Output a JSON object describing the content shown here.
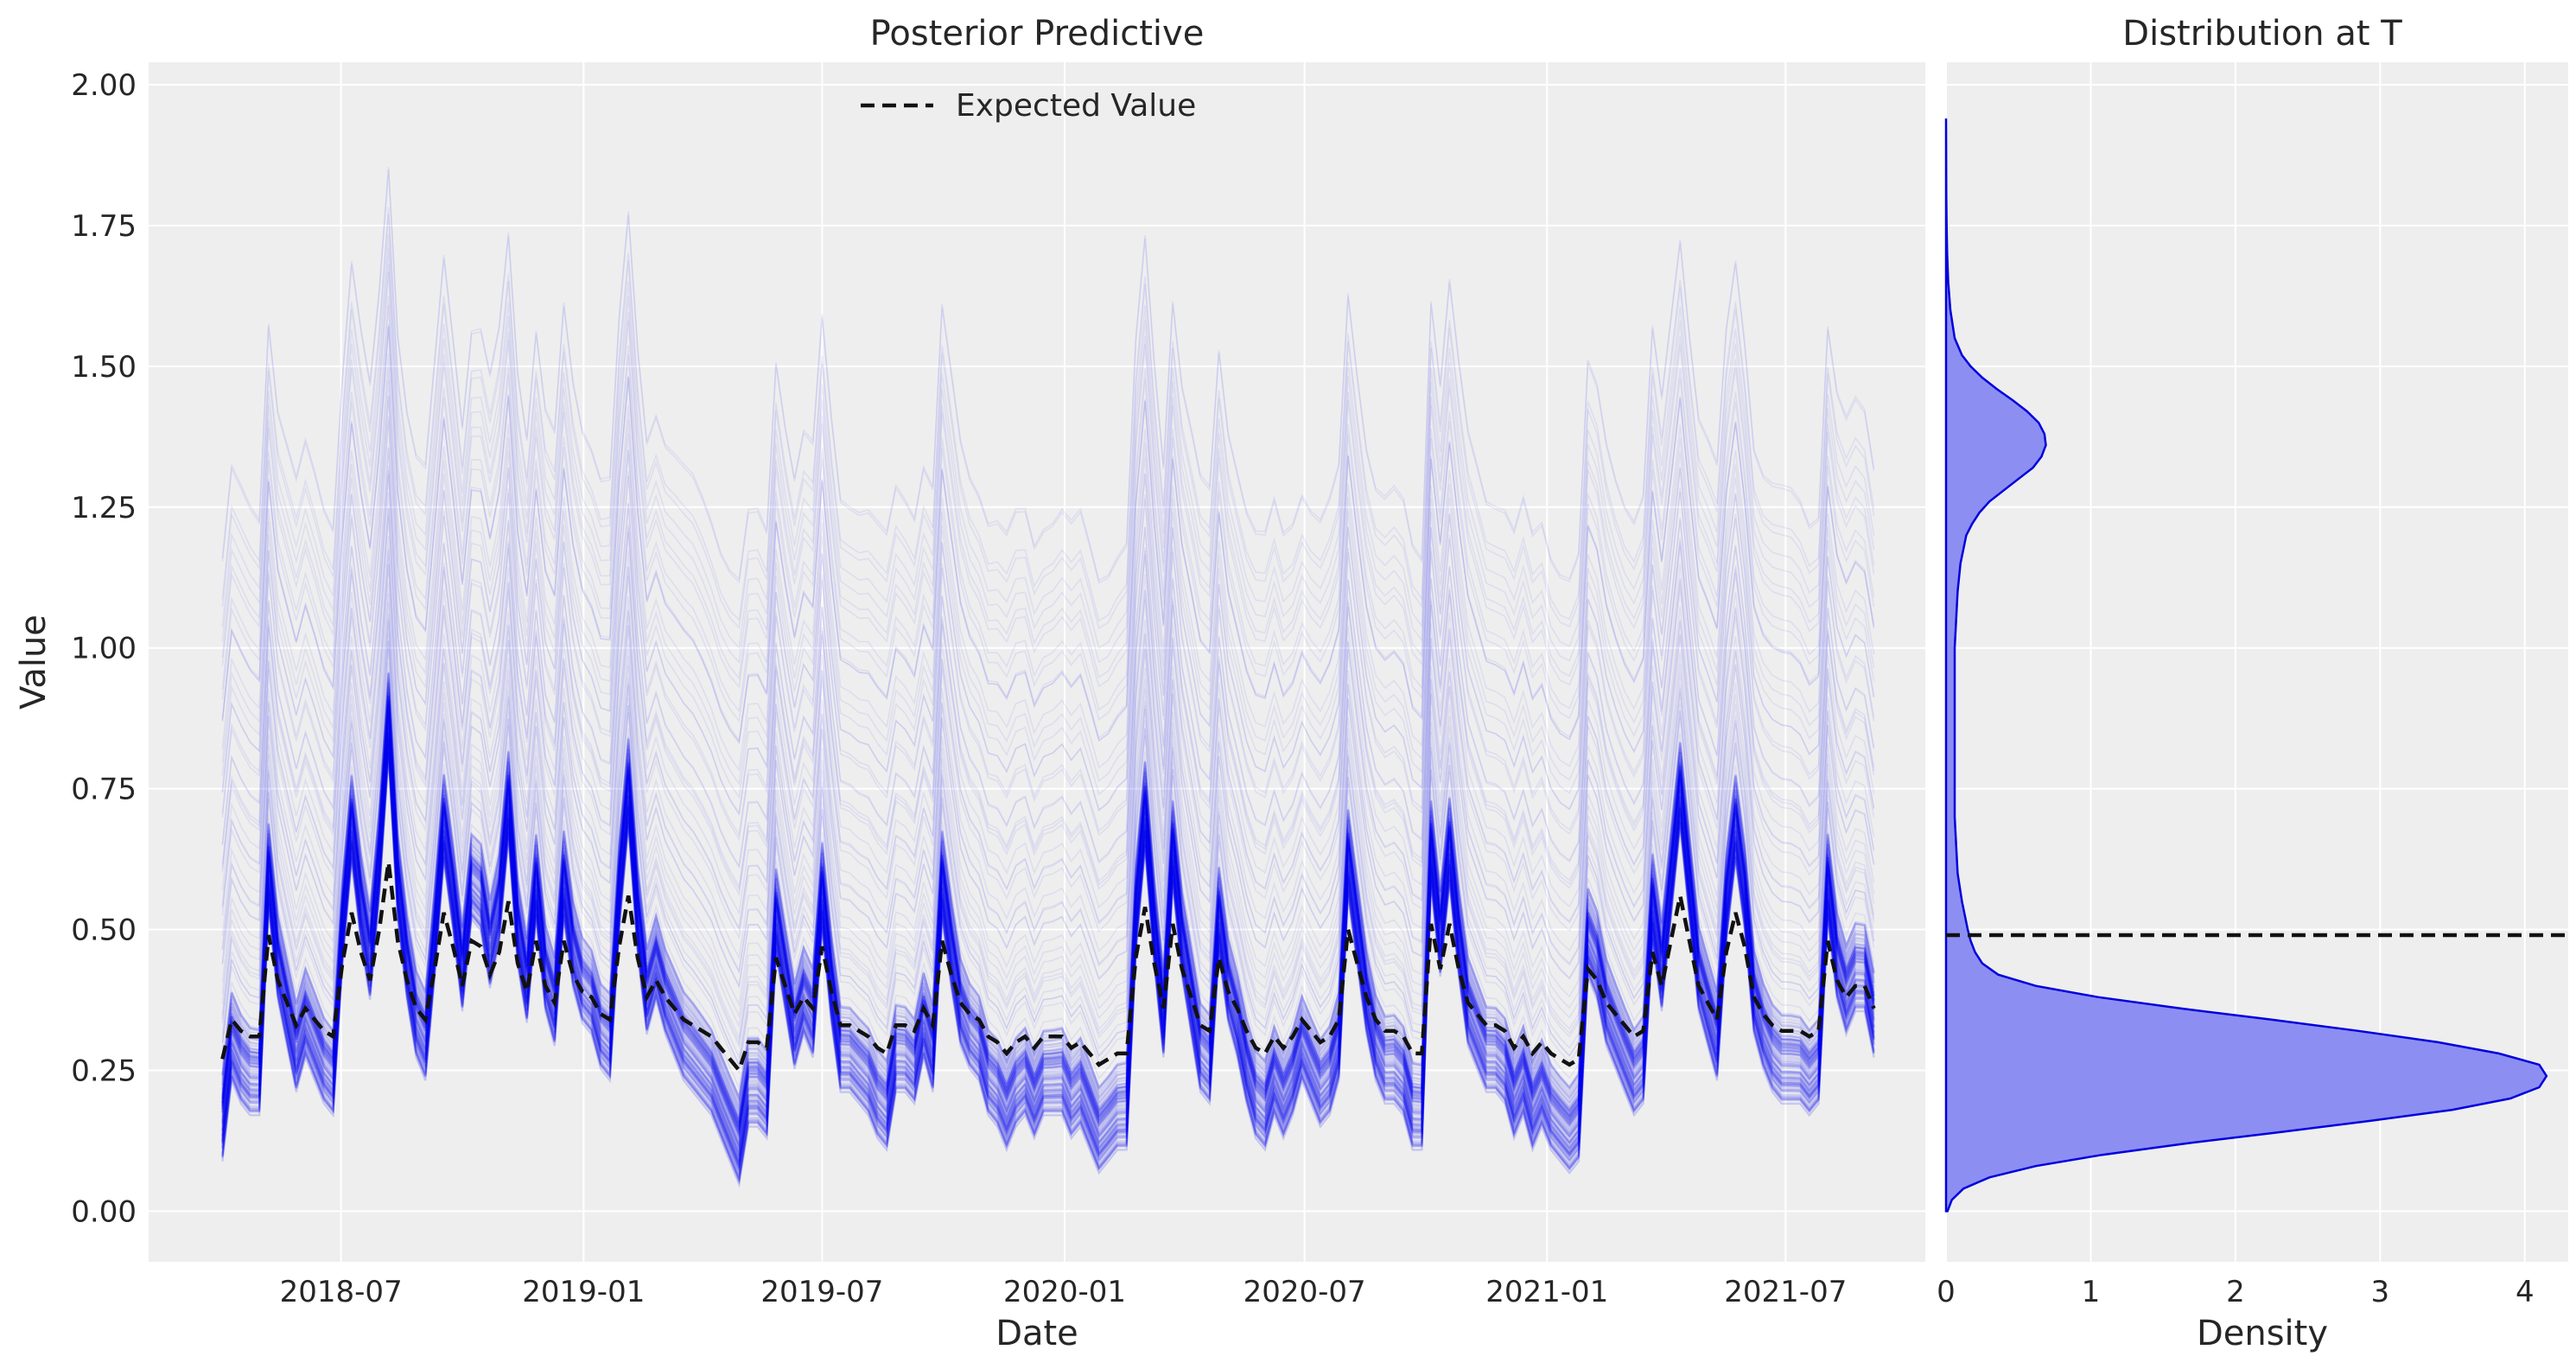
{
  "colors": {
    "figure_bg": "#ffffff",
    "axes_bg": "#eeeeee",
    "grid": "#ffffff",
    "samples": "#0000ee",
    "expected": "#111111",
    "density_fill": "#8d8ef2",
    "density_line": "#0000dd"
  },
  "chart_data": [
    {
      "type": "line",
      "title": "Posterior Predictive",
      "xlabel": "Date",
      "ylabel": "Value",
      "xlim": [
        "2018-02-05",
        "2021-10-15"
      ],
      "ylim": [
        -0.09,
        2.04
      ],
      "x_ticks": [
        "2018-07",
        "2019-01",
        "2019-07",
        "2020-01",
        "2020-07",
        "2021-01",
        "2021-07"
      ],
      "x_tick_dates": [
        "2018-07-01",
        "2019-01-01",
        "2019-07-01",
        "2020-01-01",
        "2020-07-01",
        "2021-01-01",
        "2021-07-01"
      ],
      "y_ticks": [
        "0.00",
        "0.25",
        "0.50",
        "0.75",
        "1.00",
        "1.25",
        "1.50",
        "1.75",
        "2.00"
      ],
      "y_tick_values": [
        0,
        0.25,
        0.5,
        0.75,
        1.0,
        1.25,
        1.5,
        1.75,
        2.0
      ],
      "grid": true,
      "legend_position": "top-center",
      "x_start": "2018-04-02",
      "x_step_days": 7,
      "series": [
        {
          "name": "Expected Value",
          "style": "dashed",
          "values": [
            0.27,
            0.34,
            0.32,
            0.31,
            0.31,
            0.49,
            0.41,
            0.37,
            0.33,
            0.36,
            0.34,
            0.32,
            0.31,
            0.44,
            0.53,
            0.46,
            0.41,
            0.5,
            0.62,
            0.48,
            0.41,
            0.36,
            0.34,
            0.43,
            0.53,
            0.47,
            0.4,
            0.48,
            0.47,
            0.42,
            0.46,
            0.55,
            0.44,
            0.39,
            0.48,
            0.4,
            0.37,
            0.48,
            0.42,
            0.39,
            0.38,
            0.35,
            0.34,
            0.47,
            0.56,
            0.45,
            0.38,
            0.41,
            0.38,
            0.36,
            0.34,
            0.33,
            0.32,
            0.31,
            0.29,
            0.27,
            0.25,
            0.3,
            0.3,
            0.29,
            0.45,
            0.4,
            0.35,
            0.38,
            0.36,
            0.47,
            0.39,
            0.33,
            0.33,
            0.32,
            0.31,
            0.29,
            0.28,
            0.33,
            0.33,
            0.32,
            0.36,
            0.33,
            0.48,
            0.42,
            0.37,
            0.35,
            0.34,
            0.31,
            0.3,
            0.28,
            0.3,
            0.31,
            0.29,
            0.31,
            0.31,
            0.31,
            0.29,
            0.3,
            0.28,
            0.26,
            0.27,
            0.28,
            0.28,
            0.45,
            0.54,
            0.44,
            0.36,
            0.51,
            0.43,
            0.38,
            0.33,
            0.32,
            0.45,
            0.39,
            0.36,
            0.32,
            0.29,
            0.28,
            0.31,
            0.29,
            0.31,
            0.34,
            0.32,
            0.3,
            0.31,
            0.34,
            0.5,
            0.44,
            0.38,
            0.34,
            0.32,
            0.32,
            0.31,
            0.28,
            0.28,
            0.51,
            0.43,
            0.51,
            0.43,
            0.37,
            0.35,
            0.33,
            0.33,
            0.32,
            0.29,
            0.31,
            0.28,
            0.3,
            0.28,
            0.27,
            0.26,
            0.27,
            0.43,
            0.41,
            0.37,
            0.35,
            0.33,
            0.31,
            0.32,
            0.46,
            0.4,
            0.48,
            0.56,
            0.48,
            0.4,
            0.37,
            0.34,
            0.46,
            0.53,
            0.47,
            0.38,
            0.35,
            0.33,
            0.32,
            0.32,
            0.32,
            0.31,
            0.32,
            0.48,
            0.41,
            0.38,
            0.4,
            0.4,
            0.36
          ]
        }
      ]
    },
    {
      "type": "area",
      "title": "Distribution at T",
      "xlabel": "Density",
      "ylabel": "",
      "xlim": [
        0,
        4.3
      ],
      "ylim": [
        -0.09,
        2.04
      ],
      "x_ticks": [
        "0",
        "1",
        "2",
        "3",
        "4"
      ],
      "x_tick_values": [
        0,
        1,
        2,
        3,
        4
      ],
      "grid": true,
      "expected_value_line": 0.49,
      "density_curve": {
        "value": [
          0.0,
          0.02,
          0.04,
          0.06,
          0.08,
          0.1,
          0.12,
          0.14,
          0.16,
          0.18,
          0.2,
          0.22,
          0.24,
          0.26,
          0.28,
          0.3,
          0.32,
          0.34,
          0.36,
          0.38,
          0.4,
          0.42,
          0.44,
          0.46,
          0.48,
          0.5,
          0.55,
          0.6,
          0.7,
          0.8,
          0.9,
          1.0,
          1.05,
          1.1,
          1.15,
          1.2,
          1.22,
          1.24,
          1.26,
          1.28,
          1.3,
          1.32,
          1.34,
          1.36,
          1.38,
          1.4,
          1.42,
          1.44,
          1.46,
          1.48,
          1.5,
          1.52,
          1.55,
          1.6,
          1.65,
          1.7,
          1.75,
          1.8,
          1.85,
          1.9,
          1.94
        ],
        "density": [
          0.01,
          0.04,
          0.12,
          0.3,
          0.62,
          1.08,
          1.65,
          2.3,
          2.92,
          3.5,
          3.9,
          4.1,
          4.15,
          4.1,
          3.82,
          3.4,
          2.85,
          2.25,
          1.62,
          1.05,
          0.62,
          0.36,
          0.25,
          0.2,
          0.17,
          0.15,
          0.11,
          0.08,
          0.06,
          0.06,
          0.06,
          0.06,
          0.07,
          0.08,
          0.1,
          0.14,
          0.18,
          0.23,
          0.3,
          0.4,
          0.5,
          0.6,
          0.66,
          0.69,
          0.68,
          0.64,
          0.56,
          0.46,
          0.35,
          0.25,
          0.17,
          0.11,
          0.06,
          0.03,
          0.015,
          0.008,
          0.004,
          0.002,
          0.001,
          0.0005,
          0.0
        ]
      }
    }
  ]
}
